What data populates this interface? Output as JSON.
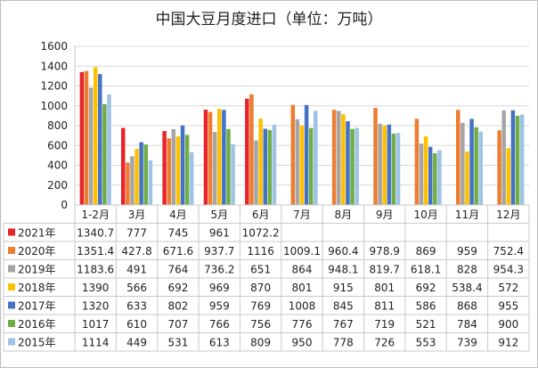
{
  "title": "中国大豆月度进口（单位：万吨）",
  "chart_data": {
    "type": "bar",
    "title": "中国大豆月度进口（单位：万吨）",
    "xlabel": "",
    "ylabel": "",
    "ylim": [
      0,
      1600
    ],
    "yticks": [
      0,
      200,
      400,
      600,
      800,
      1000,
      1200,
      1400,
      1600
    ],
    "grid": true,
    "legend": "data-table",
    "categories": [
      "1-2月",
      "3月",
      "4月",
      "5月",
      "6月",
      "7月",
      "8月",
      "9月",
      "10月",
      "11月",
      "12月"
    ],
    "series": [
      {
        "name": "2021年",
        "color": "#e8232a",
        "values": [
          1340.7,
          777,
          745,
          961,
          1072.2,
          null,
          null,
          null,
          null,
          null,
          null
        ]
      },
      {
        "name": "2020年",
        "color": "#ed7d31",
        "values": [
          1351.4,
          427.8,
          671.6,
          937.7,
          1116,
          1009.1,
          960.4,
          978.9,
          869,
          959,
          752.4
        ]
      },
      {
        "name": "2019年",
        "color": "#a5a5a5",
        "values": [
          1183.6,
          491,
          764,
          736.2,
          651,
          864,
          948.1,
          819.7,
          618.1,
          828,
          954.3
        ]
      },
      {
        "name": "2018年",
        "color": "#ffc000",
        "values": [
          1390,
          566,
          692,
          969,
          870,
          801,
          915,
          801,
          692,
          538.4,
          572
        ]
      },
      {
        "name": "2017年",
        "color": "#4472c4",
        "values": [
          1320,
          633,
          802,
          959,
          769,
          1008,
          845,
          811,
          586,
          868,
          955
        ]
      },
      {
        "name": "2016年",
        "color": "#70ad47",
        "values": [
          1017,
          610,
          707,
          766,
          756,
          776,
          767,
          719,
          521,
          784,
          900
        ]
      },
      {
        "name": "2015年",
        "color": "#9dc3e6",
        "values": [
          1114,
          449,
          531,
          613,
          809,
          950,
          778,
          726,
          553,
          739,
          912
        ]
      }
    ],
    "table_values": [
      [
        "1340.7",
        "777",
        "745",
        "961",
        "1072.2",
        "",
        "",
        "",
        "",
        "",
        ""
      ],
      [
        "1351.4",
        "427.8",
        "671.6",
        "937.7",
        "1116",
        "1009.1",
        "960.4",
        "978.9",
        "869",
        "959",
        "752.4"
      ],
      [
        "1183.6",
        "491",
        "764",
        "736.2",
        "651",
        "864",
        "948.1",
        "819.7",
        "618.1",
        "828",
        "954.3"
      ],
      [
        "1390",
        "566",
        "692",
        "969",
        "870",
        "801",
        "915",
        "801",
        "692",
        "538.4",
        "572"
      ],
      [
        "1320",
        "633",
        "802",
        "959",
        "769",
        "1008",
        "845",
        "811",
        "586",
        "868",
        "955"
      ],
      [
        "1017",
        "610",
        "707",
        "766",
        "756",
        "776",
        "767",
        "719",
        "521",
        "784",
        "900"
      ],
      [
        "1114",
        "449",
        "531",
        "613",
        "809",
        "950",
        "778",
        "726",
        "553",
        "739",
        "912"
      ]
    ]
  }
}
